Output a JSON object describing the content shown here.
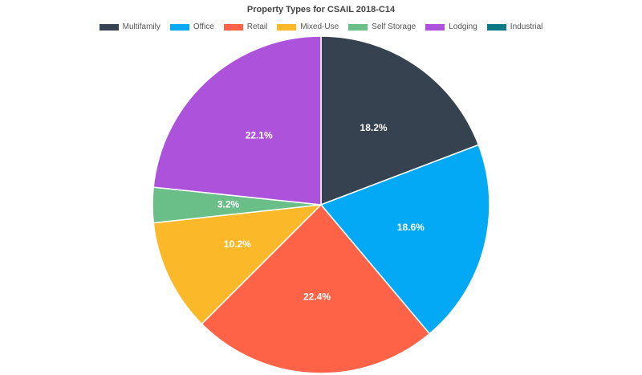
{
  "chart_data": {
    "type": "pie",
    "title": "Property Types for CSAIL 2018-C14",
    "legend_position": "top",
    "series": [
      {
        "name": "Multifamily",
        "value": 18.2,
        "label": "18.2%",
        "color": "#36424f"
      },
      {
        "name": "Office",
        "value": 18.6,
        "label": "18.6%",
        "color": "#03a9f4"
      },
      {
        "name": "Retail",
        "value": 22.4,
        "label": "22.4%",
        "color": "#ff6347"
      },
      {
        "name": "Mixed-Use",
        "value": 10.2,
        "label": "10.2%",
        "color": "#fbb829"
      },
      {
        "name": "Self Storage",
        "value": 3.2,
        "label": "3.2%",
        "color": "#6abf89"
      },
      {
        "name": "Lodging",
        "value": 22.1,
        "label": "22.1%",
        "color": "#ad53db"
      },
      {
        "name": "Industrial",
        "value": 0,
        "label": "",
        "color": "#0b7a87"
      }
    ]
  }
}
